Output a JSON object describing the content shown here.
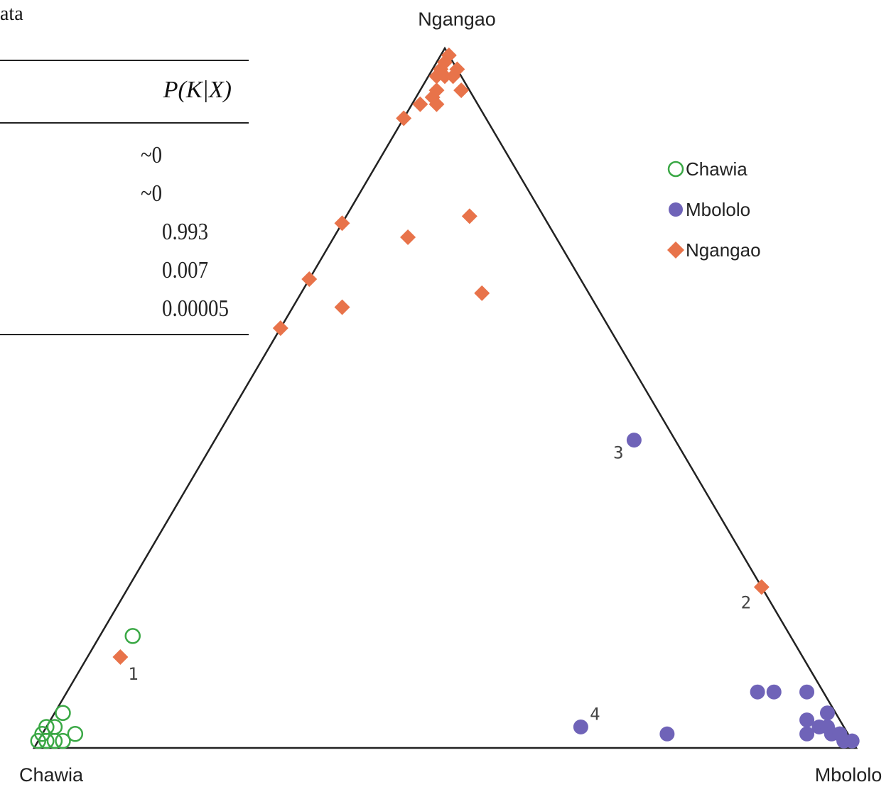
{
  "table": {
    "caption_fragment": "ata",
    "column_header": "P(K|X)",
    "values": [
      "~0",
      "~0",
      "0.993",
      "0.007",
      "0.00005"
    ]
  },
  "chart_data": {
    "type": "scatter",
    "subtype": "ternary",
    "vertices": {
      "top": "Ngangao",
      "left": "Chawia",
      "right": "Mbololo"
    },
    "legend_placement": "right",
    "legend": [
      {
        "name": "Chawia",
        "marker": "open-circle",
        "color": "#3aa845"
      },
      {
        "name": "Mbololo",
        "marker": "filled-circle",
        "color": "#6f63b8"
      },
      {
        "name": "Ngangao",
        "marker": "diamond",
        "color": "#e8734a"
      }
    ],
    "series": [
      {
        "name": "Chawia",
        "points": [
          {
            "Chawia": 0.8,
            "Mbololo": 0.04,
            "Ngangao": 0.16
          },
          {
            "Chawia": 0.94,
            "Mbololo": 0.01,
            "Ngangao": 0.05
          },
          {
            "Chawia": 0.96,
            "Mbololo": 0.01,
            "Ngangao": 0.03
          },
          {
            "Chawia": 0.97,
            "Mbololo": 0.0,
            "Ngangao": 0.03
          },
          {
            "Chawia": 0.94,
            "Mbololo": 0.04,
            "Ngangao": 0.02
          },
          {
            "Chawia": 0.96,
            "Mbololo": 0.03,
            "Ngangao": 0.01
          },
          {
            "Chawia": 0.98,
            "Mbololo": 0.0,
            "Ngangao": 0.02
          },
          {
            "Chawia": 0.99,
            "Mbololo": 0.0,
            "Ngangao": 0.01
          },
          {
            "Chawia": 0.97,
            "Mbololo": 0.02,
            "Ngangao": 0.01
          },
          {
            "Chawia": 0.98,
            "Mbololo": 0.01,
            "Ngangao": 0.01
          }
        ]
      },
      {
        "name": "Mbololo",
        "points": [
          {
            "Chawia": 0.05,
            "Mbololo": 0.51,
            "Ngangao": 0.44,
            "label": "3"
          },
          {
            "Chawia": 0.32,
            "Mbololo": 0.65,
            "Ngangao": 0.03,
            "label": "4"
          },
          {
            "Chawia": 0.08,
            "Mbololo": 0.84,
            "Ngangao": 0.08
          },
          {
            "Chawia": 0.06,
            "Mbololo": 0.86,
            "Ngangao": 0.08
          },
          {
            "Chawia": 0.02,
            "Mbololo": 0.9,
            "Ngangao": 0.08
          },
          {
            "Chawia": 0.05,
            "Mbololo": 0.93,
            "Ngangao": 0.02
          },
          {
            "Chawia": 0.04,
            "Mbololo": 0.92,
            "Ngangao": 0.04
          },
          {
            "Chawia": 0.03,
            "Mbololo": 0.94,
            "Ngangao": 0.03
          },
          {
            "Chawia": 0.02,
            "Mbololo": 0.95,
            "Ngangao": 0.03
          },
          {
            "Chawia": 0.02,
            "Mbololo": 0.96,
            "Ngangao": 0.02
          },
          {
            "Chawia": 0.01,
            "Mbololo": 0.97,
            "Ngangao": 0.02
          },
          {
            "Chawia": 0.01,
            "Mbololo": 0.98,
            "Ngangao": 0.01
          },
          {
            "Chawia": 0.0,
            "Mbololo": 0.99,
            "Ngangao": 0.01
          },
          {
            "Chawia": 0.22,
            "Mbololo": 0.76,
            "Ngangao": 0.02
          },
          {
            "Chawia": 0.01,
            "Mbololo": 0.97,
            "Ngangao": 0.02
          },
          {
            "Chawia": 0.01,
            "Mbololo": 0.94,
            "Ngangao": 0.05
          }
        ]
      },
      {
        "name": "Ngangao",
        "points": [
          {
            "Chawia": 0.0,
            "Mbololo": 0.01,
            "Ngangao": 0.99
          },
          {
            "Chawia": 0.01,
            "Mbololo": 0.01,
            "Ngangao": 0.98
          },
          {
            "Chawia": 0.02,
            "Mbololo": 0.01,
            "Ngangao": 0.97
          },
          {
            "Chawia": 0.02,
            "Mbololo": 0.02,
            "Ngangao": 0.96
          },
          {
            "Chawia": 0.03,
            "Mbololo": 0.01,
            "Ngangao": 0.96
          },
          {
            "Chawia": 0.01,
            "Mbololo": 0.03,
            "Ngangao": 0.96
          },
          {
            "Chawia": 0.0,
            "Mbololo": 0.03,
            "Ngangao": 0.97
          },
          {
            "Chawia": 0.04,
            "Mbololo": 0.02,
            "Ngangao": 0.94
          },
          {
            "Chawia": 0.05,
            "Mbololo": 0.02,
            "Ngangao": 0.93
          },
          {
            "Chawia": 0.05,
            "Mbololo": 0.03,
            "Ngangao": 0.92
          },
          {
            "Chawia": 0.01,
            "Mbololo": 0.05,
            "Ngangao": 0.94
          },
          {
            "Chawia": 0.07,
            "Mbololo": 0.01,
            "Ngangao": 0.92
          },
          {
            "Chawia": 0.1,
            "Mbololo": 0.0,
            "Ngangao": 0.9
          },
          {
            "Chawia": 0.09,
            "Mbololo": 0.15,
            "Ngangao": 0.76
          },
          {
            "Chawia": 0.25,
            "Mbololo": 0.0,
            "Ngangao": 0.75
          },
          {
            "Chawia": 0.18,
            "Mbololo": 0.09,
            "Ngangao": 0.73
          },
          {
            "Chawia": 0.13,
            "Mbololo": 0.22,
            "Ngangao": 0.65
          },
          {
            "Chawia": 0.33,
            "Mbololo": 0.0,
            "Ngangao": 0.67
          },
          {
            "Chawia": 0.31,
            "Mbololo": 0.06,
            "Ngangao": 0.63
          },
          {
            "Chawia": 0.4,
            "Mbololo": 0.0,
            "Ngangao": 0.6
          },
          {
            "Chawia": 0.83,
            "Mbololo": 0.04,
            "Ngangao": 0.13,
            "label": "1"
          },
          {
            "Chawia": 0.0,
            "Mbololo": 0.77,
            "Ngangao": 0.23,
            "label": "2"
          }
        ]
      }
    ]
  }
}
